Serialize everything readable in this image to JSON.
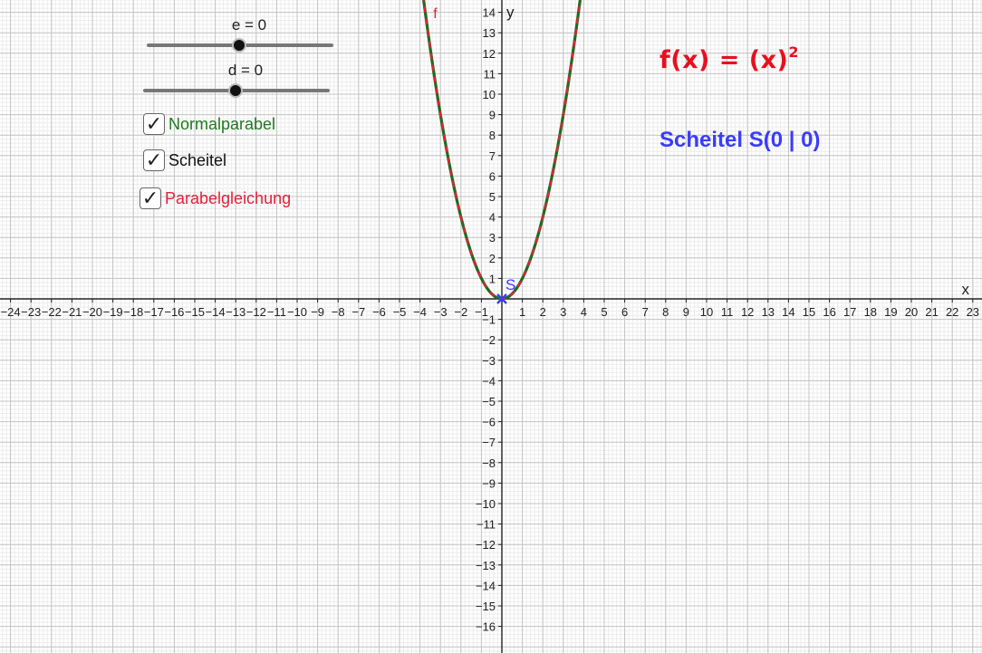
{
  "sliders": [
    {
      "label": "e = 0",
      "value": 0
    },
    {
      "label": "d = 0",
      "value": 0
    }
  ],
  "checkboxes": [
    {
      "label": "Normalparabel",
      "checked": true,
      "checkmark": "✓",
      "color": "#1e7a1e"
    },
    {
      "label": "Scheitel",
      "checked": true,
      "checkmark": "✓",
      "color": "#111111"
    },
    {
      "label": "Parabelgleichung",
      "checked": true,
      "checkmark": "✓",
      "color": "#e0223a"
    }
  ],
  "formula": {
    "lhs": "f(x)",
    "eq": "=",
    "rhs": "(x)",
    "exponent": "2",
    "color": "#e8101f"
  },
  "vertex_text": {
    "text": "Scheitel  S(0 | 0)",
    "color": "#3a3cff"
  },
  "graph": {
    "x_axis_label": "x",
    "y_axis_label": "y",
    "function_label": "f",
    "vertex_label": "S",
    "x_range": [
      -24,
      23
    ],
    "y_range": [
      -16,
      14
    ],
    "x_ticks": [
      -24,
      -23,
      -22,
      -21,
      -20,
      -19,
      -18,
      -17,
      -16,
      -15,
      -14,
      -13,
      -12,
      -11,
      -10,
      -9,
      -8,
      -7,
      -6,
      -5,
      -4,
      -3,
      -2,
      -1,
      1,
      2,
      3,
      4,
      5,
      6,
      7,
      8,
      9,
      10,
      11,
      12,
      13,
      14,
      15,
      16,
      17,
      18,
      19,
      20,
      21,
      22,
      23
    ],
    "y_ticks": [
      -16,
      -15,
      -14,
      -13,
      -12,
      -11,
      -10,
      -9,
      -8,
      -7,
      -6,
      -5,
      -4,
      -3,
      -2,
      -1,
      1,
      2,
      3,
      4,
      5,
      6,
      7,
      8,
      9,
      10,
      11,
      12,
      13,
      14
    ],
    "parabola_color": "#1e6b1e",
    "equation_curve_color": "#e0223a",
    "vertex_color": "#3a3cff",
    "vertex": [
      0,
      0
    ]
  }
}
